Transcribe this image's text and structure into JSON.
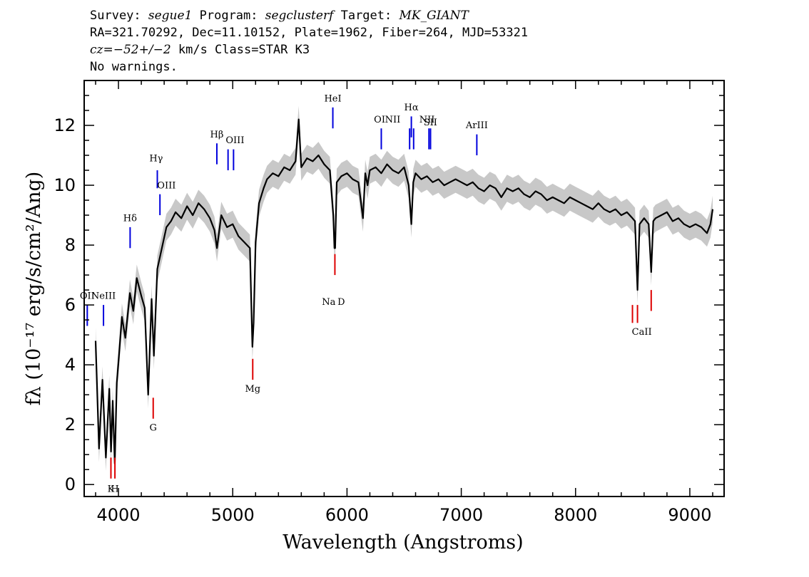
{
  "header": {
    "line1": {
      "survey_label": "Survey: ",
      "survey": "segue1",
      "program_label": " Program: ",
      "program": "segclusterf",
      "target_label": " Target: ",
      "target": "MK_GIANT"
    },
    "line2": "RA=321.70292, Dec=11.10152, Plate=1962, Fiber=264, MJD=53321",
    "line3": {
      "cz_label": "cz",
      "cz_value": "=−52+/−2",
      "rest": " km/s Class=STAR K3"
    },
    "line4": "No warnings."
  },
  "chart_data": {
    "type": "line",
    "xlabel": "Wavelength (Angstroms)",
    "ylabel": "fλ (10⁻¹⁷ erg/s/cm²/Ang)",
    "xlim": [
      3700,
      9300
    ],
    "ylim": [
      -0.4,
      13.5
    ],
    "xticks": [
      4000,
      5000,
      6000,
      7000,
      8000,
      9000
    ],
    "yticks": [
      0,
      2,
      4,
      6,
      8,
      10,
      12
    ],
    "series": [
      {
        "color": "#000000",
        "x": [
          3800,
          3830,
          3860,
          3890,
          3920,
          3935,
          3950,
          3968,
          3985,
          4000,
          4030,
          4060,
          4100,
          4130,
          4160,
          4200,
          4230,
          4260,
          4290,
          4310,
          4340,
          4380,
          4420,
          4460,
          4500,
          4550,
          4600,
          4650,
          4700,
          4750,
          4800,
          4840,
          4862,
          4900,
          4950,
          5000,
          5050,
          5100,
          5150,
          5172,
          5183,
          5200,
          5230,
          5270,
          5300,
          5350,
          5400,
          5450,
          5500,
          5550,
          5577,
          5600,
          5650,
          5700,
          5750,
          5800,
          5850,
          5880,
          5890,
          5896,
          5910,
          5950,
          6000,
          6050,
          6100,
          6140,
          6160,
          6180,
          6200,
          6250,
          6300,
          6350,
          6400,
          6450,
          6500,
          6540,
          6563,
          6580,
          6600,
          6650,
          6700,
          6750,
          6800,
          6850,
          6900,
          6950,
          7000,
          7050,
          7100,
          7150,
          7200,
          7250,
          7300,
          7350,
          7400,
          7450,
          7500,
          7550,
          7600,
          7650,
          7700,
          7750,
          7800,
          7850,
          7900,
          7950,
          8000,
          8050,
          8100,
          8150,
          8200,
          8250,
          8300,
          8350,
          8400,
          8450,
          8498,
          8520,
          8542,
          8560,
          8600,
          8640,
          8662,
          8680,
          8700,
          8750,
          8800,
          8850,
          8900,
          8950,
          9000,
          9050,
          9100,
          9150,
          9180,
          9200
        ],
        "y": [
          4.8,
          1.2,
          3.5,
          0.9,
          3.2,
          1.1,
          2.8,
          0.7,
          3.4,
          4.1,
          5.6,
          4.9,
          6.4,
          5.8,
          6.9,
          6.3,
          5.9,
          3.0,
          6.2,
          4.3,
          7.2,
          7.9,
          8.6,
          8.8,
          9.1,
          8.9,
          9.3,
          9.0,
          9.4,
          9.2,
          8.9,
          8.5,
          7.9,
          9.0,
          8.6,
          8.7,
          8.3,
          8.1,
          7.9,
          4.6,
          5.4,
          8.1,
          9.4,
          9.9,
          10.2,
          10.4,
          10.3,
          10.6,
          10.5,
          10.8,
          12.2,
          10.6,
          10.9,
          10.8,
          11.0,
          10.7,
          10.5,
          9.0,
          7.9,
          7.9,
          10.1,
          10.3,
          10.4,
          10.2,
          10.1,
          8.9,
          10.4,
          10.0,
          10.5,
          10.6,
          10.4,
          10.7,
          10.5,
          10.4,
          10.6,
          10.0,
          8.7,
          10.1,
          10.4,
          10.2,
          10.3,
          10.1,
          10.2,
          10.0,
          10.1,
          10.2,
          10.1,
          10.0,
          10.1,
          9.9,
          9.8,
          10.0,
          9.9,
          9.6,
          9.9,
          9.8,
          9.9,
          9.7,
          9.6,
          9.8,
          9.7,
          9.5,
          9.6,
          9.5,
          9.4,
          9.6,
          9.5,
          9.4,
          9.3,
          9.2,
          9.4,
          9.2,
          9.1,
          9.2,
          9.0,
          9.1,
          8.9,
          8.8,
          6.5,
          8.7,
          8.9,
          8.7,
          7.1,
          8.8,
          8.9,
          9.0,
          9.1,
          8.8,
          8.9,
          8.7,
          8.6,
          8.7,
          8.6,
          8.4,
          8.7,
          9.2
        ]
      }
    ],
    "emission_lines": [
      {
        "label": "OII",
        "x": 3727,
        "y0": 5.3,
        "y1": 6.0
      },
      {
        "label": "NeIII",
        "x": 3869,
        "y0": 5.3,
        "y1": 6.0
      },
      {
        "label": "Hδ",
        "x": 4102,
        "y0": 7.9,
        "y1": 8.6
      },
      {
        "label": "Hγ",
        "x": 4340,
        "y0": 9.9,
        "y1": 10.5
      },
      {
        "label": "OIII",
        "x": 4363,
        "y0": 9.0,
        "y1": 9.7
      },
      {
        "label": "Hβ",
        "x": 4861,
        "y0": 10.7,
        "y1": 11.4
      },
      {
        "label": "OIII",
        "x": 4959,
        "y0": 10.5,
        "y1": 11.2
      },
      {
        "label": "OIII",
        "x": 5007,
        "y0": 10.5,
        "y1": 11.2
      },
      {
        "label": "HeI",
        "x": 5876,
        "y0": 11.9,
        "y1": 12.6
      },
      {
        "label": "OI",
        "x": 6300,
        "y0": 11.2,
        "y1": 11.9
      },
      {
        "label": "NII",
        "x": 6548,
        "y0": 11.2,
        "y1": 11.9
      },
      {
        "label": "Hα",
        "x": 6563,
        "y0": 11.6,
        "y1": 12.3
      },
      {
        "label": "NII",
        "x": 6583,
        "y0": 11.2,
        "y1": 11.9
      },
      {
        "label": "SII",
        "x": 6717,
        "y0": 11.2,
        "y1": 11.9
      },
      {
        "label": "SII",
        "x": 6731,
        "y0": 11.2,
        "y1": 11.9
      },
      {
        "label": "ArIII",
        "x": 7136,
        "y0": 11.0,
        "y1": 11.7
      }
    ],
    "absorption_lines": [
      {
        "label": "K",
        "x": 3934,
        "y0": 0.2,
        "y1": 0.9
      },
      {
        "label": "H",
        "x": 3969,
        "y0": 0.2,
        "y1": 0.9
      },
      {
        "label": "G",
        "x": 4304,
        "y0": 2.2,
        "y1": 2.9
      },
      {
        "label": "Mg",
        "x": 5175,
        "y0": 3.5,
        "y1": 4.2
      },
      {
        "label": "Na",
        "x": 5894,
        "y0": 7.0,
        "y1": 7.7
      },
      {
        "label": "CaII",
        "x": 8498,
        "y0": 5.4,
        "y1": 6.0
      },
      {
        "label": "CaII",
        "x": 8542,
        "y0": 5.4,
        "y1": 6.0
      },
      {
        "label": "CaII",
        "x": 8662,
        "y0": 5.8,
        "y1": 6.5
      }
    ],
    "line_labels": [
      {
        "text": "OII",
        "x": 3727,
        "y": 6.2
      },
      {
        "text": "NeIII",
        "x": 3869,
        "y": 6.2
      },
      {
        "text": "Hδ",
        "x": 4102,
        "y": 8.8
      },
      {
        "text": "Hγ",
        "x": 4330,
        "y": 10.8
      },
      {
        "text": "OIII",
        "x": 4420,
        "y": 9.9
      },
      {
        "text": "Hβ",
        "x": 4861,
        "y": 11.6
      },
      {
        "text": "OIII",
        "x": 5020,
        "y": 11.4
      },
      {
        "text": "HeI",
        "x": 5876,
        "y": 12.8
      },
      {
        "text": "OI",
        "x": 6285,
        "y": 12.1
      },
      {
        "text": "NII",
        "x": 6400,
        "y": 12.1
      },
      {
        "text": "Hα",
        "x": 6563,
        "y": 12.5
      },
      {
        "text": "NII",
        "x": 6700,
        "y": 12.1
      },
      {
        "text": "SII",
        "x": 6730,
        "y": 12.0
      },
      {
        "text": "ArIII",
        "x": 7136,
        "y": 11.9
      },
      {
        "text": "K",
        "x": 3934,
        "y": -0.25
      },
      {
        "text": "H",
        "x": 3969,
        "y": -0.25
      },
      {
        "text": "G",
        "x": 4304,
        "y": 1.8
      },
      {
        "text": "Mg",
        "x": 5175,
        "y": 3.1
      },
      {
        "text": "Na",
        "x": 5840,
        "y": 6.0
      },
      {
        "text": "D",
        "x": 5950,
        "y": 6.0
      },
      {
        "text": "CaII",
        "x": 8580,
        "y": 5.0
      }
    ]
  }
}
